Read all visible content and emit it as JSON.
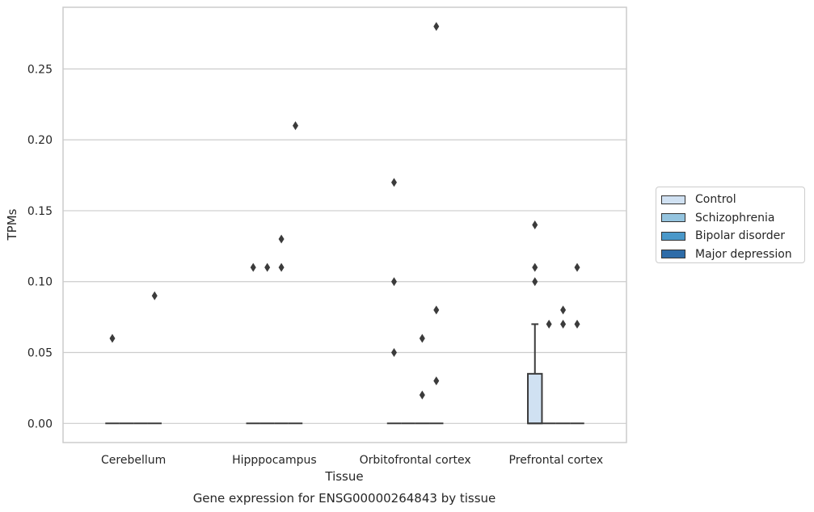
{
  "chart_data": {
    "type": "box",
    "title": "Gene expression for ENSG00000264843 by tissue",
    "xlabel": "Tissue",
    "ylabel": "TPMs",
    "ylim": [
      -0.0135,
      0.2935
    ],
    "yticks": [
      "0.00",
      "0.05",
      "0.10",
      "0.15",
      "0.20",
      "0.25"
    ],
    "ytick_values": [
      0,
      0.05,
      0.1,
      0.15,
      0.2,
      0.25
    ],
    "categories": [
      "Cerebellum",
      "Hipppocampus",
      "Orbitofrontal cortex",
      "Prefrontal cortex"
    ],
    "grid": true,
    "legend_position": "right",
    "series": [
      {
        "name": "Control",
        "color": "#d0e1f2",
        "boxes": [
          {
            "q1": 0,
            "median": 0,
            "q3": 0,
            "whisker_low": 0,
            "whisker_high": 0,
            "outliers": [
              0.06
            ]
          },
          {
            "q1": 0,
            "median": 0,
            "q3": 0,
            "whisker_low": 0,
            "whisker_high": 0,
            "outliers": [
              0.11
            ]
          },
          {
            "q1": 0,
            "median": 0,
            "q3": 0,
            "whisker_low": 0,
            "whisker_high": 0,
            "outliers": [
              0.17,
              0.1,
              0.05
            ]
          },
          {
            "q1": 0,
            "median": 0,
            "q3": 0.035,
            "whisker_low": 0,
            "whisker_high": 0.07,
            "outliers": [
              0.14,
              0.11,
              0.1
            ]
          }
        ]
      },
      {
        "name": "Schizophrenia",
        "color": "#94c4df",
        "boxes": [
          {
            "q1": 0,
            "median": 0,
            "q3": 0,
            "whisker_low": 0,
            "whisker_high": 0,
            "outliers": []
          },
          {
            "q1": 0,
            "median": 0,
            "q3": 0,
            "whisker_low": 0,
            "whisker_high": 0,
            "outliers": [
              0.11
            ]
          },
          {
            "q1": 0,
            "median": 0,
            "q3": 0,
            "whisker_low": 0,
            "whisker_high": 0,
            "outliers": []
          },
          {
            "q1": 0,
            "median": 0,
            "q3": 0,
            "whisker_low": 0,
            "whisker_high": 0,
            "outliers": [
              0.07
            ]
          }
        ]
      },
      {
        "name": "Bipolar disorder",
        "color": "#4a98c9",
        "boxes": [
          {
            "q1": 0,
            "median": 0,
            "q3": 0,
            "whisker_low": 0,
            "whisker_high": 0,
            "outliers": []
          },
          {
            "q1": 0,
            "median": 0,
            "q3": 0,
            "whisker_low": 0,
            "whisker_high": 0,
            "outliers": [
              0.13,
              0.11
            ]
          },
          {
            "q1": 0,
            "median": 0,
            "q3": 0,
            "whisker_low": 0,
            "whisker_high": 0,
            "outliers": [
              0.06,
              0.02
            ]
          },
          {
            "q1": 0,
            "median": 0,
            "q3": 0,
            "whisker_low": 0,
            "whisker_high": 0,
            "outliers": [
              0.08,
              0.07
            ]
          }
        ]
      },
      {
        "name": "Major depression",
        "color": "#2e6ca8",
        "boxes": [
          {
            "q1": 0,
            "median": 0,
            "q3": 0,
            "whisker_low": 0,
            "whisker_high": 0,
            "outliers": [
              0.09
            ]
          },
          {
            "q1": 0,
            "median": 0,
            "q3": 0,
            "whisker_low": 0,
            "whisker_high": 0,
            "outliers": [
              0.21
            ]
          },
          {
            "q1": 0,
            "median": 0,
            "q3": 0,
            "whisker_low": 0,
            "whisker_high": 0,
            "outliers": [
              0.28,
              0.08,
              0.03
            ]
          },
          {
            "q1": 0,
            "median": 0,
            "q3": 0,
            "whisker_low": 0,
            "whisker_high": 0,
            "outliers": [
              0.11,
              0.07
            ]
          }
        ]
      }
    ]
  }
}
